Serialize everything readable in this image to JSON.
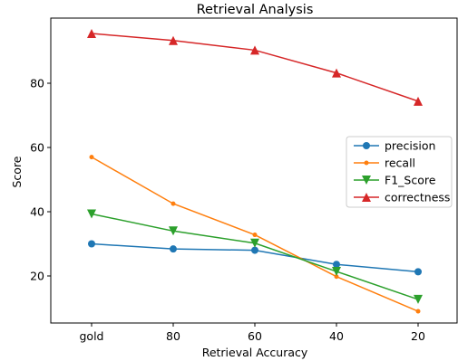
{
  "chart_data": {
    "type": "line",
    "title": "Retrieval Analysis",
    "xlabel": "Retrieval Accuracy",
    "ylabel": "Score",
    "categories": [
      "gold",
      "80",
      "60",
      "40",
      "20"
    ],
    "ylim": [
      7,
      100
    ],
    "yticks": [
      20,
      40,
      60,
      80
    ],
    "grid": false,
    "legend_position": "center-right",
    "series": [
      {
        "name": "precision",
        "marker": "circle",
        "color": "#1f77b4",
        "values": [
          30.0,
          28.4,
          28.0,
          23.6,
          21.3
        ]
      },
      {
        "name": "recall",
        "marker": "point",
        "color": "#ff7f0e",
        "values": [
          57.0,
          42.5,
          32.8,
          19.8,
          9.0
        ]
      },
      {
        "name": "F1_Score",
        "marker": "triangle-down",
        "color": "#2ca02c",
        "values": [
          39.3,
          34.0,
          30.2,
          21.4,
          12.7
        ]
      },
      {
        "name": "correctness",
        "marker": "triangle-up",
        "color": "#d62728",
        "values": [
          95.5,
          93.3,
          90.3,
          83.2,
          74.4
        ]
      }
    ]
  }
}
